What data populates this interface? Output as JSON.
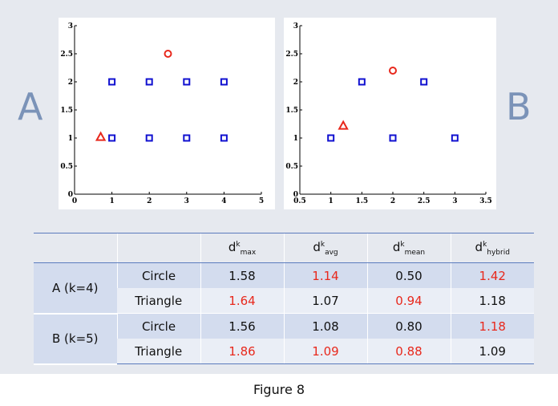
{
  "labels": {
    "left": "A",
    "right": "B"
  },
  "chart_data": [
    {
      "type": "scatter",
      "panel": "A",
      "xlim": [
        0,
        5
      ],
      "ylim": [
        0,
        3
      ],
      "xticks": [
        "0",
        "1",
        "2",
        "3",
        "4",
        "5"
      ],
      "yticks": [
        "0",
        "0.5",
        "1",
        "1.5",
        "2",
        "2.5",
        "3"
      ],
      "series": [
        {
          "marker": "square",
          "color": "#1010d0",
          "points": [
            [
              1,
              2
            ],
            [
              2,
              2
            ],
            [
              3,
              2
            ],
            [
              4,
              2
            ],
            [
              1,
              1
            ],
            [
              2,
              1
            ],
            [
              3,
              1
            ],
            [
              4,
              1
            ]
          ]
        },
        {
          "marker": "circle",
          "color": "#e8281c",
          "points": [
            [
              2.5,
              2.5
            ]
          ]
        },
        {
          "marker": "triangle",
          "color": "#e8281c",
          "points": [
            [
              0.7,
              1.02
            ]
          ]
        }
      ]
    },
    {
      "type": "scatter",
      "panel": "B",
      "xlim": [
        0.5,
        3.5
      ],
      "ylim": [
        0,
        3
      ],
      "xticks": [
        "0.5",
        "1",
        "1.5",
        "2",
        "2.5",
        "3",
        "3.5"
      ],
      "yticks": [
        "0",
        "0.5",
        "1",
        "1.5",
        "2",
        "2.5",
        "3"
      ],
      "series": [
        {
          "marker": "square",
          "color": "#1010d0",
          "points": [
            [
              1.5,
              2
            ],
            [
              2.5,
              2
            ],
            [
              1,
              1
            ],
            [
              2,
              1
            ],
            [
              3,
              1
            ]
          ]
        },
        {
          "marker": "circle",
          "color": "#e8281c",
          "points": [
            [
              2,
              2.2
            ]
          ]
        },
        {
          "marker": "triangle",
          "color": "#e8281c",
          "points": [
            [
              1.2,
              1.22
            ]
          ]
        }
      ]
    }
  ],
  "table": {
    "header_base": "d",
    "header_sup": "k",
    "columns": [
      "max",
      "avg",
      "mean",
      "hybrid"
    ],
    "groups": [
      {
        "label": "A (k=4)",
        "rows": [
          {
            "shape": "Circle",
            "values": [
              "1.58",
              "1.14",
              "0.50",
              "1.42"
            ],
            "red": [
              false,
              true,
              false,
              true
            ]
          },
          {
            "shape": "Triangle",
            "values": [
              "1.64",
              "1.07",
              "0.94",
              "1.18"
            ],
            "red": [
              true,
              false,
              true,
              false
            ]
          }
        ]
      },
      {
        "label": "B (k=5)",
        "rows": [
          {
            "shape": "Circle",
            "values": [
              "1.56",
              "1.08",
              "0.80",
              "1.18"
            ],
            "red": [
              false,
              false,
              false,
              true
            ]
          },
          {
            "shape": "Triangle",
            "values": [
              "1.86",
              "1.09",
              "0.88",
              "1.09"
            ],
            "red": [
              true,
              true,
              true,
              false
            ]
          }
        ]
      }
    ]
  },
  "caption": "Figure 8"
}
